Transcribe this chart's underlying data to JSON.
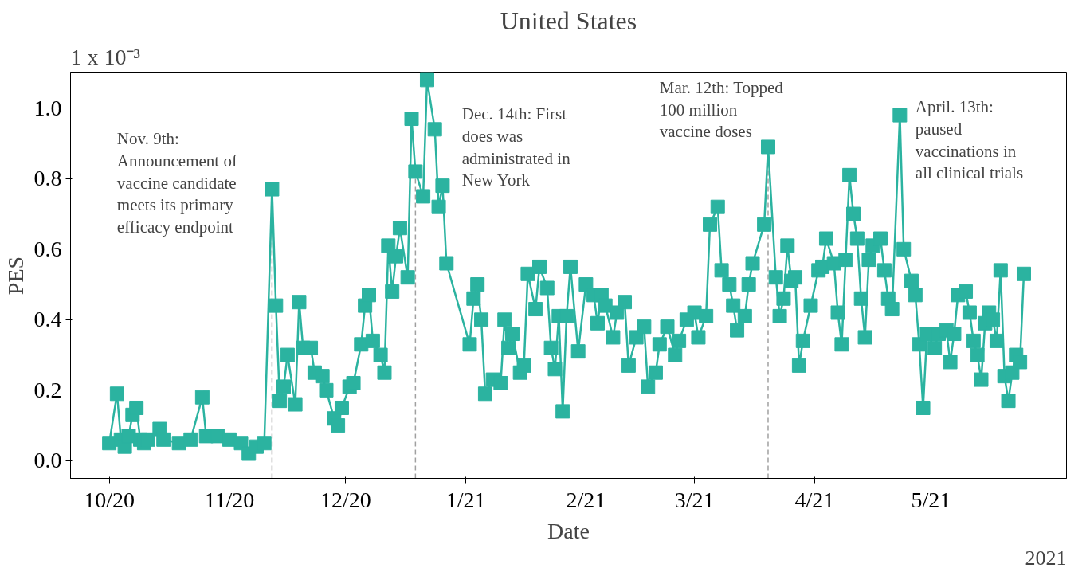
{
  "chart_data": {
    "type": "line",
    "title": "United States",
    "xlabel": "Date",
    "ylabel": "PES",
    "annotations": [
      "1 x 10⁻³",
      "2021",
      "Nov. 9th:\nAnnouncement of\nvaccine candidate\nmeets its primary\nefficacy endpoint",
      "Dec. 14th: First\ndoes was\nadministrated in\nNew York",
      "Mar. 12th: Topped\n100 million\nvaccine doses",
      "April. 13th:\npaused\nvaccinations in\nall clinical trials"
    ],
    "xlim": [
      "2020-09-21",
      "2021-06-05"
    ],
    "xticks": [
      {
        "value": "2020-10-01",
        "label": "10/20"
      },
      {
        "value": "2020-11-01",
        "label": "11/20"
      },
      {
        "value": "2020-12-01",
        "label": "12/20"
      },
      {
        "value": "2021-01-01",
        "label": "1/21"
      },
      {
        "value": "2021-02-01",
        "label": "2/21"
      },
      {
        "value": "2021-03-01",
        "label": "3/21"
      },
      {
        "value": "2021-04-01",
        "label": "4/21"
      },
      {
        "value": "2021-05-01",
        "label": "5/21"
      }
    ],
    "ylim": [
      -0.05,
      1.1
    ],
    "yticks": [
      {
        "value": 0,
        "label": "0.0"
      },
      0.2,
      0.4,
      0.6,
      0.8,
      {
        "value": 1,
        "label": "1.0"
      }
    ],
    "grid": false,
    "marker": "square",
    "line_style": "solid",
    "ref_lines": [
      {
        "axis": "x",
        "value": "2020-11-12",
        "color": "#a0a0a0",
        "line_style": "dashed"
      },
      {
        "axis": "x",
        "value": "2020-12-19",
        "color": "#a0a0a0",
        "line_style": "dashed"
      },
      {
        "axis": "x",
        "value": "2021-03-20",
        "color": "#a0a0a0",
        "line_style": "dashed"
      }
    ],
    "series": [
      {
        "color": "#2bb3a0",
        "x": [
          "2020-10-01",
          "2020-10-03",
          "2020-10-04",
          "2020-10-05",
          "2020-10-06",
          "2020-10-07",
          "2020-10-08",
          "2020-10-09",
          "2020-10-10",
          "2020-10-11",
          "2020-10-14",
          "2020-10-15",
          "2020-10-19",
          "2020-10-22",
          "2020-10-25",
          "2020-10-26",
          "2020-10-29",
          "2020-11-01",
          "2020-11-04",
          "2020-11-06",
          "2020-11-08",
          "2020-11-10",
          "2020-11-12",
          "2020-11-13",
          "2020-11-14",
          "2020-11-15",
          "2020-11-16",
          "2020-11-18",
          "2020-11-19",
          "2020-11-20",
          "2020-11-22",
          "2020-11-23",
          "2020-11-25",
          "2020-11-26",
          "2020-11-28",
          "2020-11-29",
          "2020-11-30",
          "2020-12-02",
          "2020-12-03",
          "2020-12-05",
          "2020-12-06",
          "2020-12-07",
          "2020-12-08",
          "2020-12-10",
          "2020-12-11",
          "2020-12-12",
          "2020-12-13",
          "2020-12-14",
          "2020-12-15",
          "2020-12-17",
          "2020-12-18",
          "2020-12-19",
          "2020-12-21",
          "2020-12-22",
          "2020-12-24",
          "2020-12-25",
          "2020-12-26",
          "2020-12-27",
          "2021-01-02",
          "2021-01-03",
          "2021-01-04",
          "2021-01-05",
          "2021-01-06",
          "2021-01-08",
          "2021-01-10",
          "2021-01-11",
          "2021-01-12",
          "2021-01-13",
          "2021-01-15",
          "2021-01-16",
          "2021-01-17",
          "2021-01-19",
          "2021-01-20",
          "2021-01-22",
          "2021-01-23",
          "2021-01-24",
          "2021-01-25",
          "2021-01-26",
          "2021-01-27",
          "2021-01-28",
          "2021-01-30",
          "2021-02-01",
          "2021-02-03",
          "2021-02-04",
          "2021-02-05",
          "2021-02-06",
          "2021-02-08",
          "2021-02-09",
          "2021-02-11",
          "2021-02-12",
          "2021-02-14",
          "2021-02-16",
          "2021-02-17",
          "2021-02-19",
          "2021-02-20",
          "2021-02-22",
          "2021-02-24",
          "2021-02-25",
          "2021-02-27",
          "2021-03-01",
          "2021-03-02",
          "2021-03-04",
          "2021-03-05",
          "2021-03-07",
          "2021-03-08",
          "2021-03-10",
          "2021-03-11",
          "2021-03-12",
          "2021-03-14",
          "2021-03-15",
          "2021-03-16",
          "2021-03-19",
          "2021-03-20",
          "2021-03-22",
          "2021-03-23",
          "2021-03-24",
          "2021-03-25",
          "2021-03-26",
          "2021-03-27",
          "2021-03-28",
          "2021-03-29",
          "2021-03-31",
          "2021-04-02",
          "2021-04-03",
          "2021-04-04",
          "2021-04-06",
          "2021-04-07",
          "2021-04-08",
          "2021-04-09",
          "2021-04-10",
          "2021-04-11",
          "2021-04-12",
          "2021-04-13",
          "2021-04-14",
          "2021-04-15",
          "2021-04-16",
          "2021-04-18",
          "2021-04-19",
          "2021-04-20",
          "2021-04-21",
          "2021-04-23",
          "2021-04-24",
          "2021-04-26",
          "2021-04-27",
          "2021-04-28",
          "2021-04-29",
          "2021-04-30",
          "2021-05-02",
          "2021-05-03",
          "2021-05-05",
          "2021-05-06",
          "2021-05-07",
          "2021-05-08",
          "2021-05-10",
          "2021-05-11",
          "2021-05-12",
          "2021-05-13",
          "2021-05-14",
          "2021-05-15",
          "2021-05-16",
          "2021-05-17",
          "2021-05-18",
          "2021-05-19",
          "2021-05-20",
          "2021-05-21",
          "2021-05-22",
          "2021-05-23",
          "2021-05-24",
          "2021-05-25"
        ],
        "values": [
          0.05,
          0.19,
          0.06,
          0.04,
          0.07,
          0.13,
          0.15,
          0.06,
          0.05,
          0.06,
          0.09,
          0.06,
          0.05,
          0.06,
          0.18,
          0.07,
          0.07,
          0.06,
          0.05,
          0.02,
          0.04,
          0.05,
          0.77,
          0.44,
          0.17,
          0.21,
          0.3,
          0.16,
          0.45,
          0.32,
          0.32,
          0.25,
          0.24,
          0.2,
          0.12,
          0.1,
          0.15,
          0.21,
          0.22,
          0.33,
          0.44,
          0.47,
          0.34,
          0.3,
          0.25,
          0.61,
          0.48,
          0.58,
          0.66,
          0.52,
          0.97,
          0.82,
          0.75,
          1.08,
          0.94,
          0.72,
          0.78,
          0.56,
          0.33,
          0.46,
          0.5,
          0.4,
          0.19,
          0.23,
          0.22,
          0.4,
          0.32,
          0.36,
          0.25,
          0.27,
          0.53,
          0.43,
          0.55,
          0.49,
          0.32,
          0.26,
          0.41,
          0.14,
          0.41,
          0.55,
          0.31,
          0.5,
          0.47,
          0.39,
          0.47,
          0.44,
          0.35,
          0.42,
          0.45,
          0.27,
          0.35,
          0.38,
          0.21,
          0.25,
          0.33,
          0.38,
          0.3,
          0.34,
          0.4,
          0.42,
          0.35,
          0.41,
          0.67,
          0.72,
          0.54,
          0.5,
          0.44,
          0.37,
          0.41,
          0.5,
          0.56,
          0.67,
          0.89,
          0.52,
          0.41,
          0.46,
          0.61,
          0.51,
          0.52,
          0.27,
          0.34,
          0.44,
          0.54,
          0.55,
          0.63,
          0.56,
          0.42,
          0.33,
          0.57,
          0.81,
          0.7,
          0.63,
          0.46,
          0.35,
          0.57,
          0.61,
          0.63,
          0.54,
          0.46,
          0.43,
          0.98,
          0.6,
          0.51,
          0.47,
          0.33,
          0.15,
          0.36,
          0.32,
          0.36,
          0.37,
          0.28,
          0.36,
          0.47,
          0.48,
          0.42,
          0.34,
          0.3,
          0.23,
          0.39,
          0.42,
          0.4,
          0.34,
          0.54,
          0.24,
          0.17,
          0.25,
          0.3,
          0.28,
          0.53
        ]
      }
    ]
  }
}
